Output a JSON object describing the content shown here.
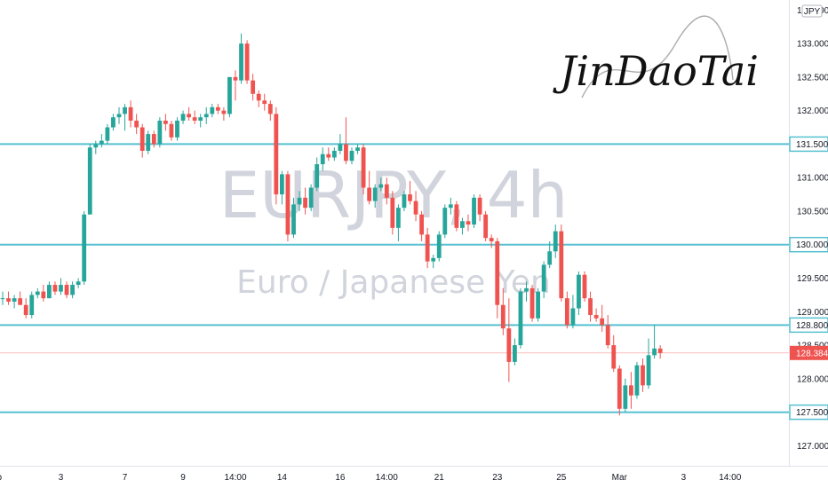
{
  "watermark": {
    "symbol": "EURJPY, 4h",
    "description": "Euro / Japanese Yen"
  },
  "signature": "JinDaoTai",
  "currency_badge": "JPY",
  "colors": {
    "up": "#26a69a",
    "down": "#ef5350",
    "level_line": "#56c0d0",
    "price_line": "#ef5350",
    "price_label_bg": "#ef5350",
    "level_label_border": "#56c0d0"
  },
  "chart_data": {
    "type": "candlestick",
    "symbol": "EURJPY",
    "timeframe": "4h",
    "ylim": [
      126.7,
      133.65
    ],
    "price_ticks": [
      "127.000",
      "127.500",
      "128.000",
      "128.500",
      "129.000",
      "129.500",
      "130.000",
      "130.500",
      "131.000",
      "131.500",
      "132.000",
      "132.500",
      "133.000",
      "133.500"
    ],
    "x_ticks": [
      {
        "label": "eb",
        "bar": -1
      },
      {
        "label": "3",
        "bar": 10
      },
      {
        "label": "7",
        "bar": 21
      },
      {
        "label": "9",
        "bar": 31
      },
      {
        "label": "14:00",
        "bar": 40
      },
      {
        "label": "14",
        "bar": 48
      },
      {
        "label": "16",
        "bar": 58
      },
      {
        "label": "14:00",
        "bar": 66
      },
      {
        "label": "21",
        "bar": 75
      },
      {
        "label": "23",
        "bar": 85
      },
      {
        "label": "25",
        "bar": 96
      },
      {
        "label": "Mar",
        "bar": 106
      },
      {
        "label": "3",
        "bar": 117
      },
      {
        "label": "14:00",
        "bar": 125
      }
    ],
    "horizontal_levels": [
      "131.500",
      "130.000",
      "128.800",
      "127.500"
    ],
    "current_price": "128.384",
    "candles": [
      [
        129.2,
        129.3,
        129.1,
        129.2
      ],
      [
        129.2,
        129.3,
        129.1,
        129.15
      ],
      [
        129.15,
        129.25,
        129.05,
        129.2
      ],
      [
        129.2,
        129.3,
        129.1,
        129.1
      ],
      [
        129.1,
        129.2,
        128.9,
        128.95
      ],
      [
        128.95,
        129.3,
        128.9,
        129.25
      ],
      [
        129.25,
        129.35,
        129.2,
        129.3
      ],
      [
        129.3,
        129.4,
        129.15,
        129.2
      ],
      [
        129.2,
        129.45,
        129.2,
        129.4
      ],
      [
        129.4,
        129.45,
        129.25,
        129.3
      ],
      [
        129.3,
        129.5,
        129.25,
        129.4
      ],
      [
        129.4,
        129.45,
        129.2,
        129.25
      ],
      [
        129.25,
        129.45,
        129.2,
        129.4
      ],
      [
        129.4,
        129.5,
        129.35,
        129.45
      ],
      [
        129.45,
        130.5,
        129.4,
        130.45
      ],
      [
        130.45,
        131.5,
        130.45,
        131.45
      ],
      [
        131.45,
        131.55,
        131.35,
        131.5
      ],
      [
        131.5,
        131.65,
        131.45,
        131.55
      ],
      [
        131.55,
        131.8,
        131.5,
        131.75
      ],
      [
        131.75,
        131.95,
        131.7,
        131.9
      ],
      [
        131.9,
        132.05,
        131.8,
        131.95
      ],
      [
        131.95,
        132.1,
        131.7,
        132.05
      ],
      [
        132.05,
        132.15,
        131.75,
        131.85
      ],
      [
        131.85,
        131.95,
        131.65,
        131.75
      ],
      [
        131.75,
        131.8,
        131.3,
        131.4
      ],
      [
        131.4,
        131.7,
        131.35,
        131.65
      ],
      [
        131.65,
        131.7,
        131.45,
        131.5
      ],
      [
        131.5,
        131.9,
        131.45,
        131.85
      ],
      [
        131.85,
        131.95,
        131.7,
        131.8
      ],
      [
        131.8,
        131.85,
        131.55,
        131.6
      ],
      [
        131.6,
        131.9,
        131.55,
        131.85
      ],
      [
        131.85,
        132.0,
        131.8,
        131.95
      ],
      [
        131.95,
        132.05,
        131.85,
        131.9
      ],
      [
        131.9,
        132.0,
        131.8,
        131.85
      ],
      [
        131.85,
        131.95,
        131.75,
        131.9
      ],
      [
        131.9,
        132.05,
        131.8,
        131.95
      ],
      [
        131.95,
        132.1,
        131.9,
        132.05
      ],
      [
        132.05,
        132.1,
        131.95,
        132.0
      ],
      [
        132.0,
        132.05,
        131.85,
        131.95
      ],
      [
        131.95,
        132.5,
        131.9,
        132.5
      ],
      [
        132.5,
        132.6,
        132.15,
        132.45
      ],
      [
        132.45,
        133.15,
        132.4,
        133.0
      ],
      [
        133.0,
        133.05,
        132.4,
        132.45
      ],
      [
        132.45,
        132.55,
        132.15,
        132.25
      ],
      [
        132.25,
        132.3,
        132.05,
        132.15
      ],
      [
        132.15,
        132.25,
        132.0,
        132.1
      ],
      [
        132.1,
        132.15,
        131.85,
        131.95
      ],
      [
        131.95,
        132.05,
        130.6,
        130.75
      ],
      [
        130.75,
        131.1,
        130.6,
        131.05
      ],
      [
        131.05,
        131.1,
        130.05,
        130.15
      ],
      [
        130.15,
        130.7,
        130.1,
        130.6
      ],
      [
        130.6,
        130.8,
        130.5,
        130.7
      ],
      [
        130.7,
        130.85,
        130.45,
        130.55
      ],
      [
        130.55,
        130.9,
        130.5,
        130.85
      ],
      [
        130.85,
        131.3,
        130.8,
        131.2
      ],
      [
        131.2,
        131.45,
        131.1,
        131.35
      ],
      [
        131.35,
        131.45,
        131.25,
        131.3
      ],
      [
        131.3,
        131.45,
        131.25,
        131.4
      ],
      [
        131.4,
        131.65,
        131.35,
        131.5
      ],
      [
        131.5,
        131.9,
        131.2,
        131.25
      ],
      [
        131.25,
        131.45,
        131.2,
        131.4
      ],
      [
        131.4,
        131.5,
        131.35,
        131.45
      ],
      [
        131.45,
        131.5,
        130.75,
        130.85
      ],
      [
        130.85,
        131.1,
        130.6,
        130.65
      ],
      [
        130.65,
        130.9,
        130.55,
        130.85
      ],
      [
        130.85,
        131.0,
        130.8,
        130.9
      ],
      [
        130.9,
        131.0,
        130.6,
        130.7
      ],
      [
        130.7,
        130.8,
        130.15,
        130.25
      ],
      [
        130.25,
        130.6,
        130.05,
        130.55
      ],
      [
        130.55,
        130.8,
        130.5,
        130.75
      ],
      [
        130.75,
        130.95,
        130.6,
        130.65
      ],
      [
        130.65,
        130.8,
        130.35,
        130.45
      ],
      [
        130.45,
        130.5,
        130.05,
        130.15
      ],
      [
        130.15,
        130.25,
        129.65,
        129.75
      ],
      [
        129.75,
        129.85,
        129.65,
        129.8
      ],
      [
        129.8,
        130.2,
        129.75,
        130.15
      ],
      [
        130.15,
        130.6,
        130.1,
        130.55
      ],
      [
        130.55,
        130.7,
        130.45,
        130.6
      ],
      [
        130.6,
        130.65,
        130.2,
        130.25
      ],
      [
        130.25,
        130.4,
        130.15,
        130.35
      ],
      [
        130.35,
        130.45,
        130.2,
        130.3
      ],
      [
        130.3,
        130.75,
        130.25,
        130.7
      ],
      [
        130.7,
        130.75,
        130.35,
        130.45
      ],
      [
        130.45,
        130.5,
        130.05,
        130.1
      ],
      [
        130.1,
        130.15,
        129.95,
        130.05
      ],
      [
        130.05,
        130.1,
        128.9,
        129.1
      ],
      [
        129.1,
        129.35,
        128.65,
        128.75
      ],
      [
        128.75,
        129.2,
        127.95,
        128.25
      ],
      [
        128.25,
        128.6,
        128.2,
        128.5
      ],
      [
        128.5,
        129.35,
        128.45,
        129.3
      ],
      [
        129.3,
        129.45,
        129.15,
        129.35
      ],
      [
        129.35,
        129.4,
        128.85,
        128.9
      ],
      [
        128.9,
        129.35,
        128.85,
        129.3
      ],
      [
        129.3,
        129.75,
        129.2,
        129.7
      ],
      [
        129.7,
        130.05,
        129.65,
        129.9
      ],
      [
        129.9,
        130.3,
        129.8,
        130.2
      ],
      [
        130.2,
        130.3,
        129.15,
        129.2
      ],
      [
        129.2,
        129.3,
        128.75,
        128.8
      ],
      [
        128.8,
        129.25,
        128.75,
        129.05
      ],
      [
        129.05,
        129.6,
        128.95,
        129.55
      ],
      [
        129.55,
        129.6,
        129.15,
        129.2
      ],
      [
        129.2,
        129.3,
        128.85,
        128.95
      ],
      [
        128.95,
        129.05,
        128.85,
        128.9
      ],
      [
        128.9,
        129.1,
        128.7,
        128.8
      ],
      [
        128.8,
        128.95,
        128.45,
        128.5
      ],
      [
        128.5,
        128.65,
        128.1,
        128.15
      ],
      [
        128.15,
        128.2,
        127.45,
        127.55
      ],
      [
        127.55,
        128.0,
        127.5,
        127.9
      ],
      [
        127.9,
        128.1,
        127.55,
        127.75
      ],
      [
        127.75,
        128.25,
        127.7,
        128.2
      ],
      [
        128.2,
        128.3,
        127.8,
        127.9
      ],
      [
        127.9,
        128.6,
        127.85,
        128.35
      ],
      [
        128.35,
        128.8,
        128.3,
        128.45
      ],
      [
        128.45,
        128.5,
        128.3,
        128.384
      ]
    ]
  }
}
